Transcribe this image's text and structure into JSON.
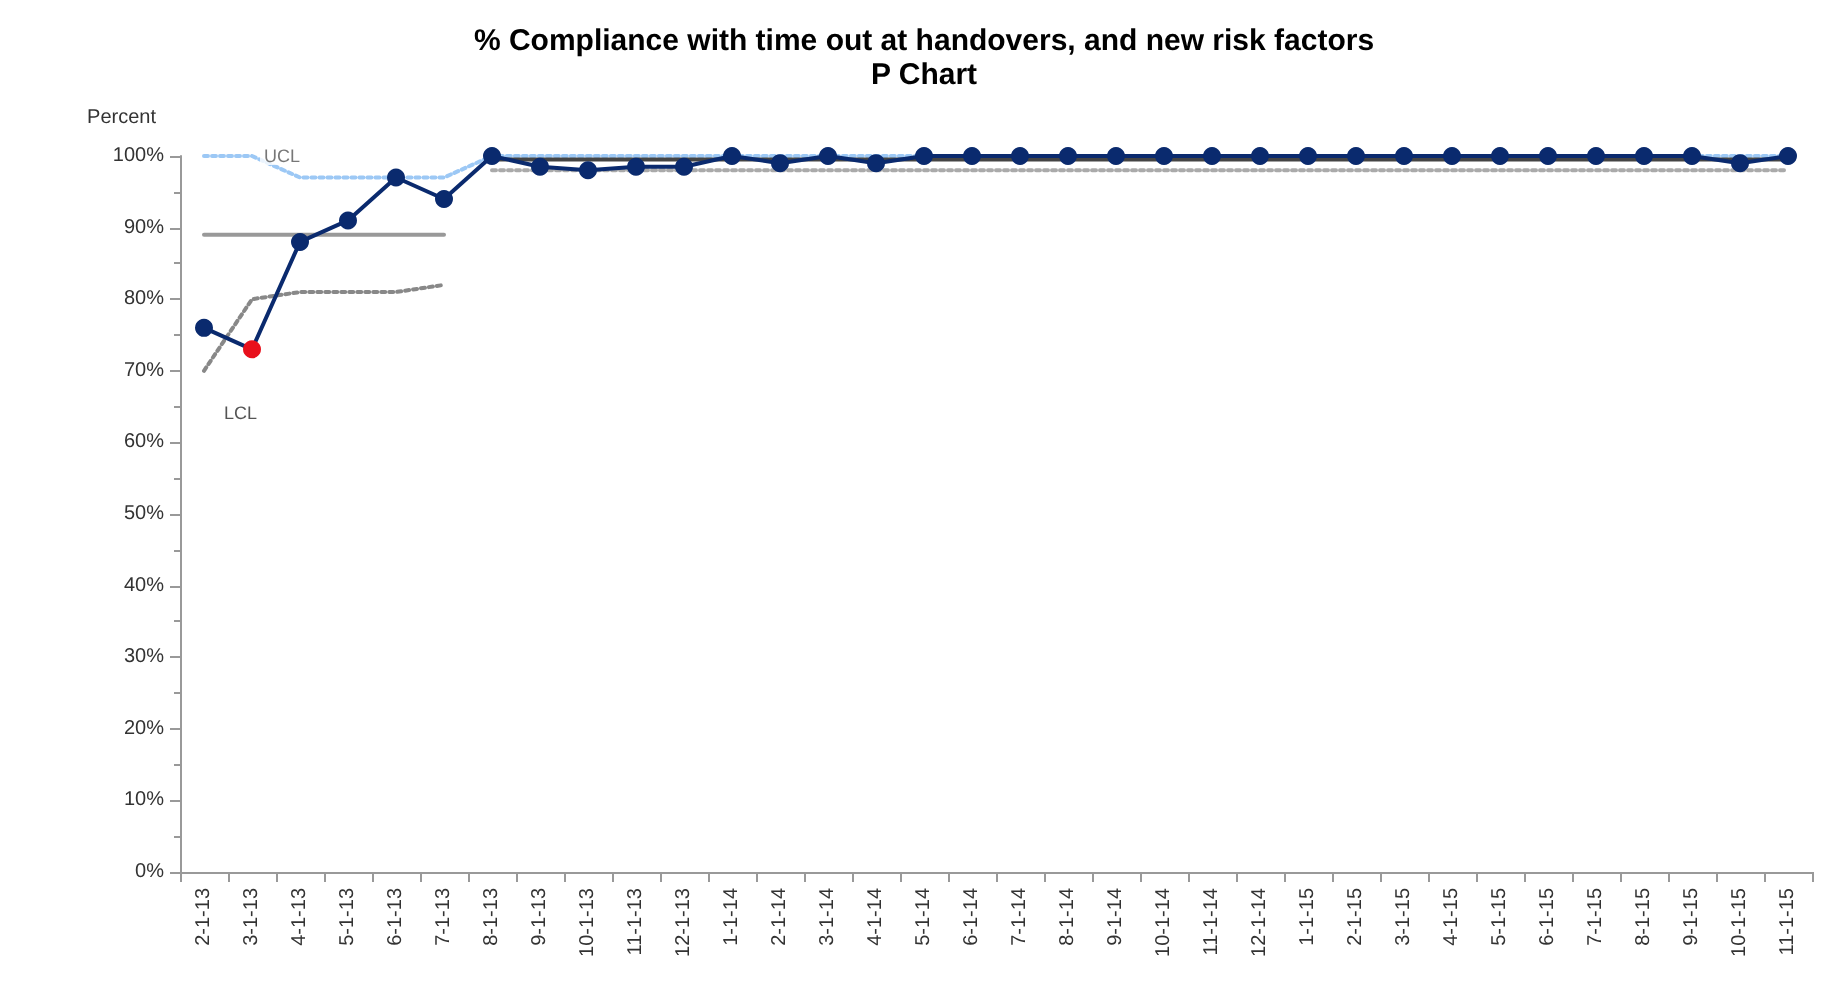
{
  "chart_data": {
    "type": "line",
    "title": "% Compliance with time out at handovers, and new risk factors",
    "subtitle": "P Chart",
    "ylabel": "Percent",
    "categories": [
      "2-1-13",
      "3-1-13",
      "4-1-13",
      "5-1-13",
      "6-1-13",
      "7-1-13",
      "8-1-13",
      "9-1-13",
      "10-1-13",
      "11-1-13",
      "12-1-13",
      "1-1-14",
      "2-1-14",
      "3-1-14",
      "4-1-14",
      "5-1-14",
      "6-1-14",
      "7-1-14",
      "8-1-14",
      "9-1-14",
      "10-1-14",
      "11-1-14",
      "12-1-14",
      "1-1-15",
      "2-1-15",
      "3-1-15",
      "4-1-15",
      "5-1-15",
      "6-1-15",
      "7-1-15",
      "8-1-15",
      "9-1-15",
      "10-1-15",
      "11-1-15"
    ],
    "series": [
      {
        "color": "#9cc8f5",
        "line_style": "dotted",
        "marker": "none",
        "values": [
          100,
          100,
          97,
          97,
          97,
          97,
          100,
          100,
          100,
          100,
          100,
          100,
          100,
          100,
          100,
          100,
          100,
          100,
          100,
          100,
          100,
          100,
          100,
          100,
          100,
          100,
          100,
          100,
          100,
          100,
          100,
          100,
          100,
          100
        ]
      },
      {
        "color": "#888888",
        "line_style": "dotted",
        "marker": "none",
        "values": [
          70,
          80,
          81,
          81,
          81,
          82,
          null,
          null,
          null,
          null,
          null,
          null,
          null,
          null,
          null,
          null,
          null,
          null,
          null,
          null,
          null,
          null,
          null,
          null,
          null,
          null,
          null,
          null,
          null,
          null,
          null,
          null,
          null,
          null
        ]
      },
      {
        "color": "#aaaaaa",
        "line_style": "dotted",
        "marker": "none",
        "values": [
          null,
          null,
          null,
          null,
          null,
          null,
          98,
          98,
          98,
          98,
          98,
          98,
          98,
          98,
          98,
          98,
          98,
          98,
          98,
          98,
          98,
          98,
          98,
          98,
          98,
          98,
          98,
          98,
          98,
          98,
          98,
          98,
          98,
          98
        ]
      },
      {
        "color": "#999999",
        "line_style": "solid",
        "marker": "none",
        "values": [
          89,
          89,
          89,
          89,
          89,
          89,
          null,
          null,
          null,
          null,
          null,
          null,
          null,
          null,
          null,
          null,
          null,
          null,
          null,
          null,
          null,
          null,
          null,
          null,
          null,
          null,
          null,
          null,
          null,
          null,
          null,
          null,
          null,
          null
        ]
      },
      {
        "color": "#444444",
        "line_style": "solid",
        "marker": "none",
        "values": [
          null,
          null,
          null,
          null,
          null,
          null,
          99.5,
          99.5,
          99.5,
          99.5,
          99.5,
          99.5,
          99.5,
          99.5,
          99.5,
          99.5,
          99.5,
          99.5,
          99.5,
          99.5,
          99.5,
          99.5,
          99.5,
          99.5,
          99.5,
          99.5,
          99.5,
          99.5,
          99.5,
          99.5,
          99.5,
          99.5,
          99.5,
          99.5
        ]
      },
      {
        "color": "#0a2a6e",
        "line_style": "solid",
        "marker": "circle",
        "values": [
          76,
          73,
          88,
          91,
          97,
          94,
          100,
          98.5,
          98,
          98.5,
          98.5,
          100,
          99,
          100,
          99,
          100,
          100,
          100,
          100,
          100,
          100,
          100,
          100,
          100,
          100,
          100,
          100,
          100,
          100,
          100,
          100,
          100,
          99,
          100
        ],
        "colors": [
          "#0a2a6e",
          "#e8101c",
          "#0a2a6e",
          "#0a2a6e",
          "#0a2a6e",
          "#0a2a6e",
          "#0a2a6e",
          "#0a2a6e",
          "#0a2a6e",
          "#0a2a6e",
          "#0a2a6e",
          "#0a2a6e",
          "#0a2a6e",
          "#0a2a6e",
          "#0a2a6e",
          "#0a2a6e",
          "#0a2a6e",
          "#0a2a6e",
          "#0a2a6e",
          "#0a2a6e",
          "#0a2a6e",
          "#0a2a6e",
          "#0a2a6e",
          "#0a2a6e",
          "#0a2a6e",
          "#0a2a6e",
          "#0a2a6e",
          "#0a2a6e",
          "#0a2a6e",
          "#0a2a6e",
          "#0a2a6e",
          "#0a2a6e",
          "#0a2a6e",
          "#0a2a6e"
        ]
      }
    ],
    "ylim": [
      0,
      100
    ],
    "yticks": [
      {
        "value": 0,
        "label": "0%"
      },
      {
        "value": 10,
        "label": "10%"
      },
      {
        "value": 20,
        "label": "20%"
      },
      {
        "value": 30,
        "label": "30%"
      },
      {
        "value": 40,
        "label": "40%"
      },
      {
        "value": 50,
        "label": "50%"
      },
      {
        "value": 60,
        "label": "60%"
      },
      {
        "value": 70,
        "label": "70%"
      },
      {
        "value": 80,
        "label": "80%"
      },
      {
        "value": 90,
        "label": "90%"
      },
      {
        "value": 100,
        "label": "100%"
      }
    ],
    "annotations": [
      {
        "text": "UCL",
        "x": "3-1-13",
        "y": 100
      },
      "LCL"
    ],
    "grid": false
  }
}
